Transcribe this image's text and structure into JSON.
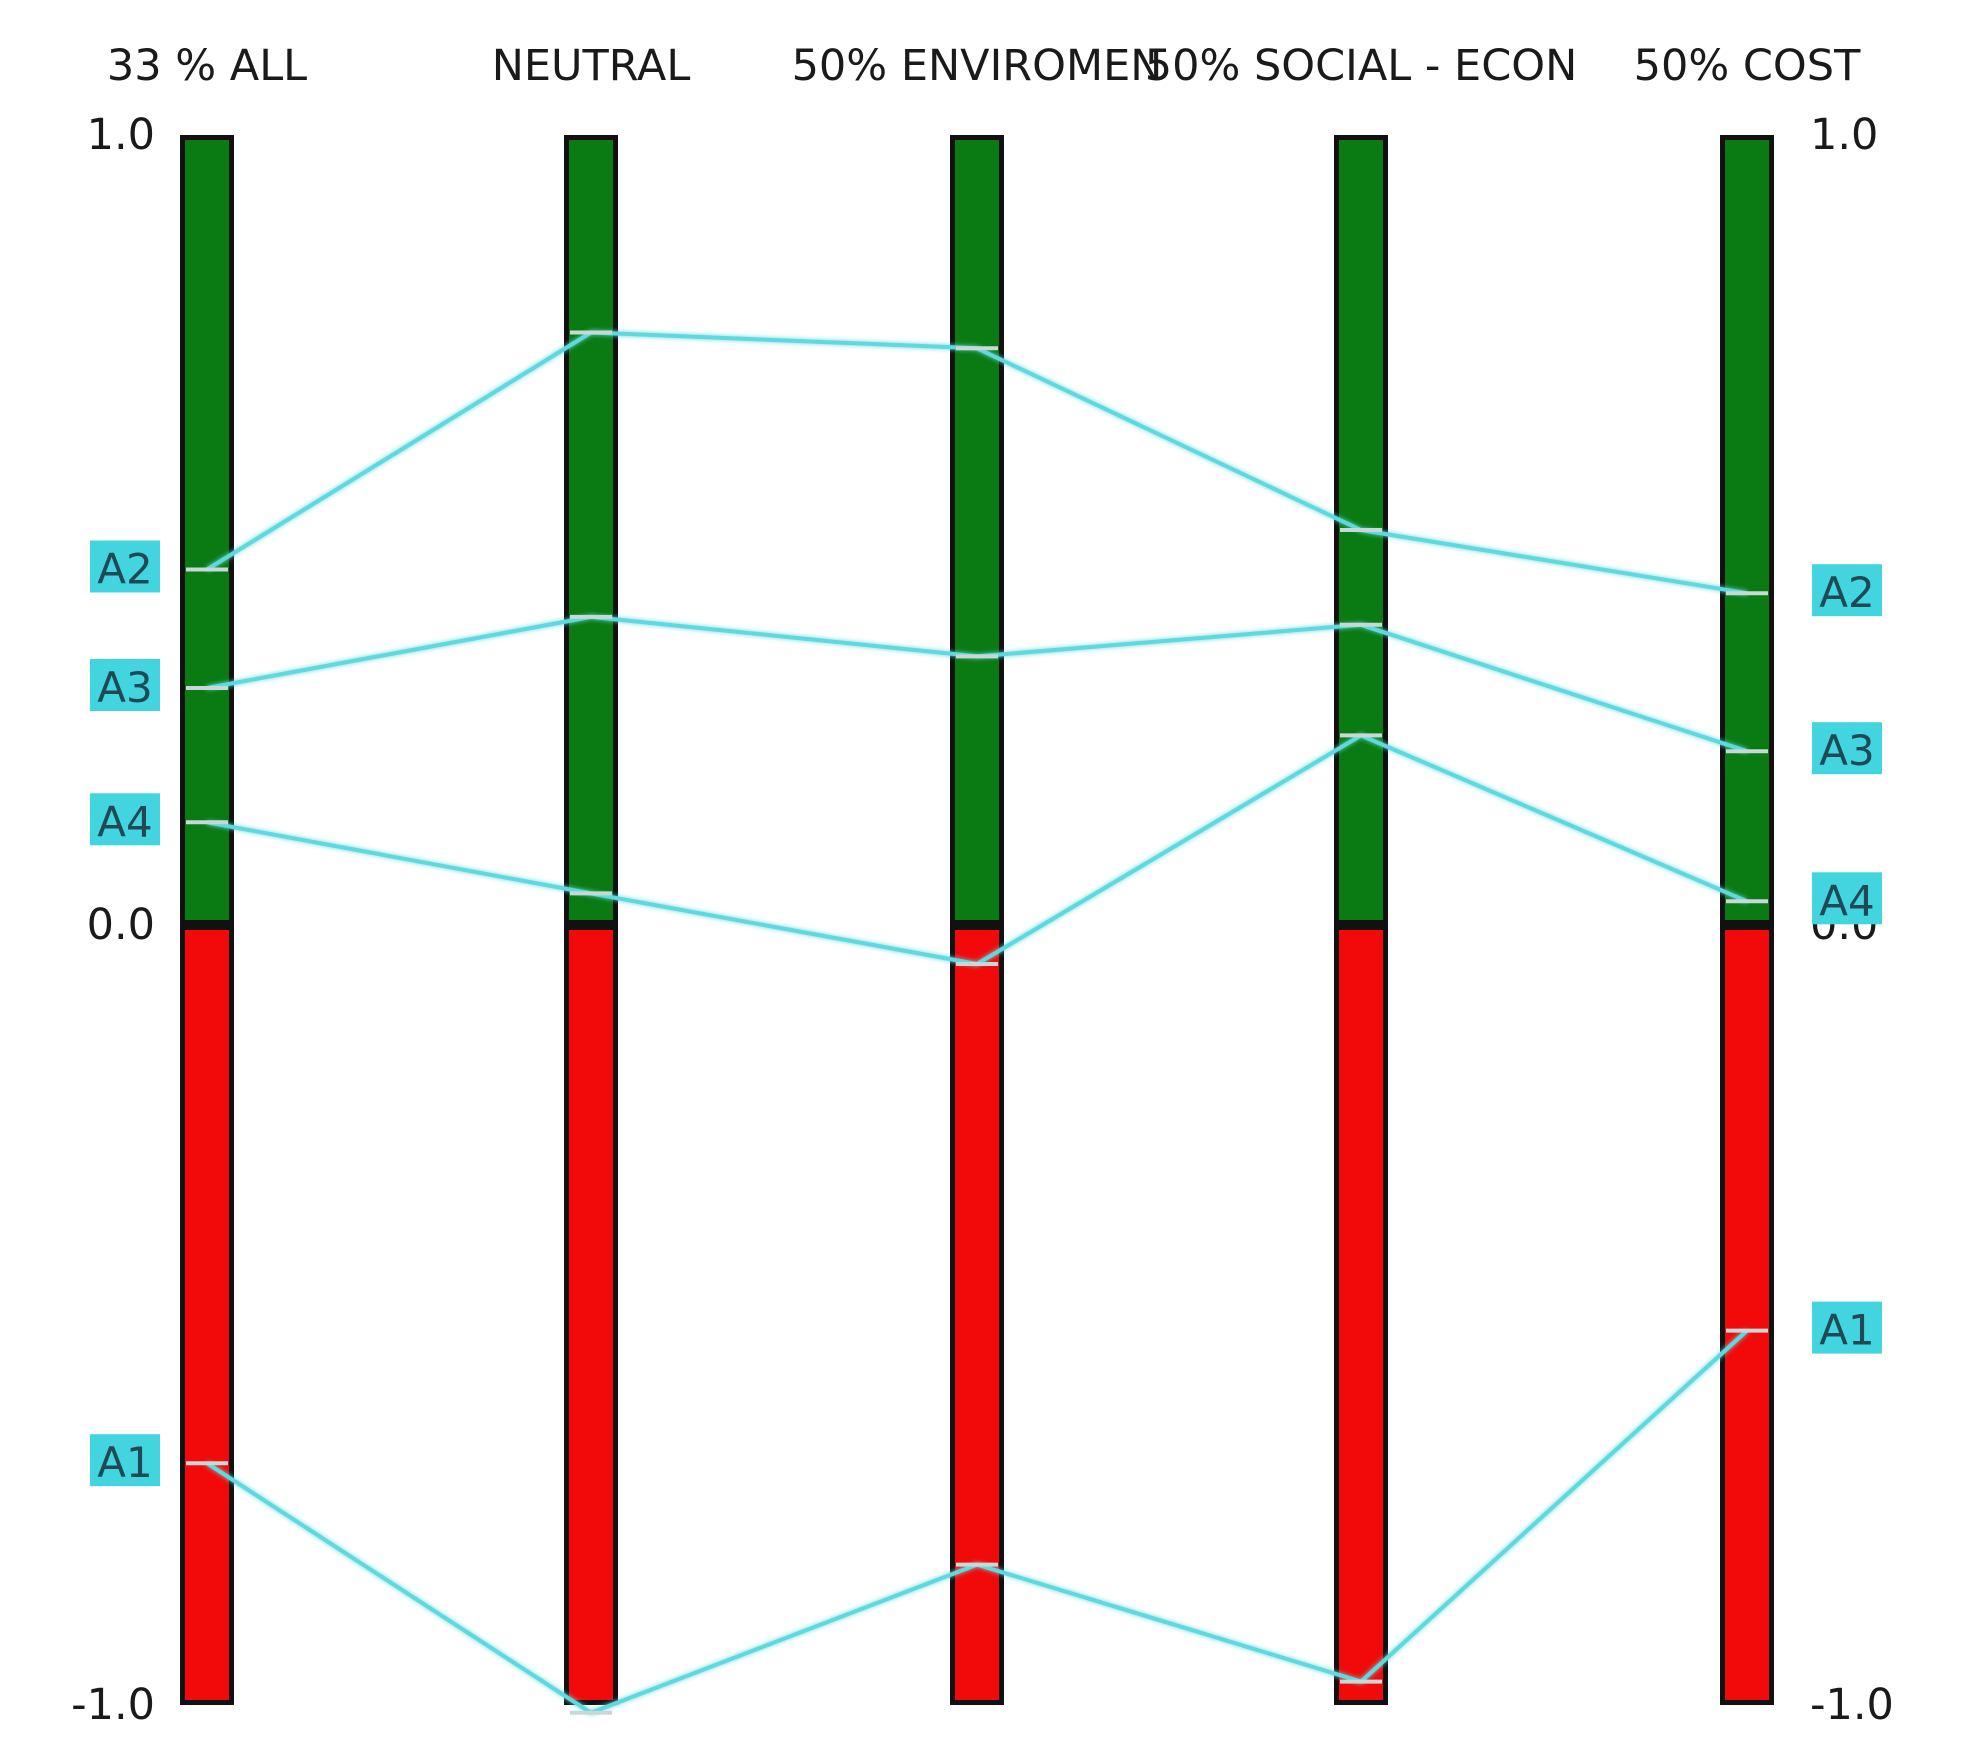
{
  "chart_data": {
    "type": "line",
    "title": "",
    "xlabel": "",
    "ylabel": "",
    "ylim": [
      -1.0,
      1.0
    ],
    "categories": [
      "33 % ALL",
      "NEUTRAL",
      "50% ENVIROMEN",
      "50% SOCIAL - ECON",
      "50% COST"
    ],
    "y_ticks": {
      "left": [
        "1.0",
        "0.0",
        "-1.0"
      ],
      "right": [
        "1.0",
        "0.0",
        "-1.0"
      ]
    },
    "series": [
      {
        "name": "A1",
        "values": [
          -0.69,
          -1.01,
          -0.82,
          -0.97,
          -0.52
        ]
      },
      {
        "name": "A2",
        "values": [
          0.45,
          0.75,
          0.73,
          0.5,
          0.42
        ]
      },
      {
        "name": "A3",
        "values": [
          0.3,
          0.39,
          0.34,
          0.38,
          0.22
        ]
      },
      {
        "name": "A4",
        "values": [
          0.13,
          0.04,
          -0.05,
          0.24,
          0.03
        ]
      }
    ],
    "colors": {
      "positive_bar": "#0a7a12",
      "negative_bar": "#f20a0a",
      "bar_outline": "#111111",
      "line": "#5fd9de",
      "label_box": "#42d4df"
    },
    "grid": false
  }
}
